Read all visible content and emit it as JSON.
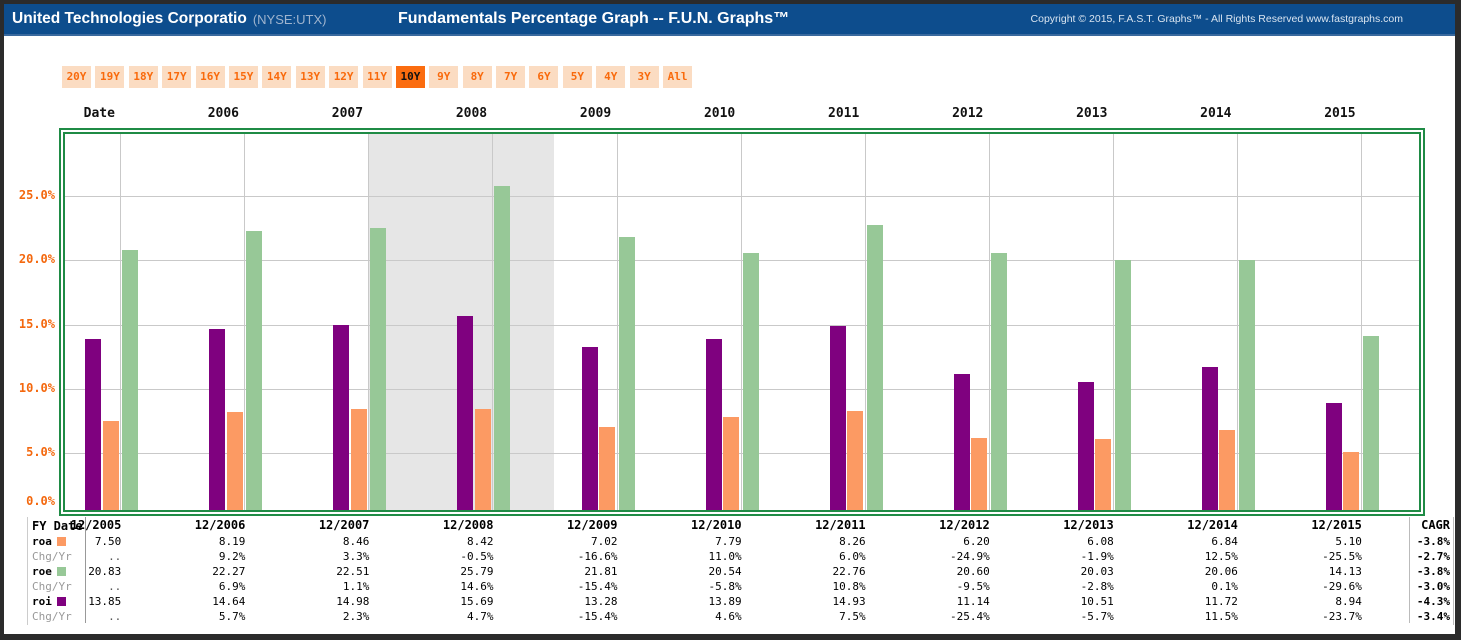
{
  "header": {
    "company": "United Technologies Corporatio",
    "ticker": "(NYSE:UTX)",
    "title": "Fundamentals Percentage Graph -- F.U.N. Graphs™",
    "copyright": "Copyright © 2015, F.A.S.T. Graphs™ - All Rights Reserved www.fastgraphs.com"
  },
  "toolbar": {
    "range_buttons": [
      "20Y",
      "19Y",
      "18Y",
      "17Y",
      "16Y",
      "15Y",
      "14Y",
      "13Y",
      "12Y",
      "11Y",
      "10Y",
      "9Y",
      "8Y",
      "7Y",
      "6Y",
      "5Y",
      "4Y",
      "3Y",
      "All"
    ],
    "selected": "10Y"
  },
  "top_axis": [
    "Date",
    "2006",
    "2007",
    "2008",
    "2009",
    "2010",
    "2011",
    "2012",
    "2013",
    "2014",
    "2015"
  ],
  "chart_data": {
    "type": "bar",
    "title": "Fundamentals Percentage Graph -- F.U.N. Graphs™",
    "x_labels": [
      "12/2005",
      "12/2006",
      "12/2007",
      "12/2008",
      "12/2009",
      "12/2010",
      "12/2011",
      "12/2012",
      "12/2013",
      "12/2014",
      "12/2015"
    ],
    "series": [
      {
        "name": "roi",
        "color": "#7F017F",
        "values": [
          13.85,
          14.64,
          14.98,
          15.69,
          13.28,
          13.89,
          14.93,
          11.14,
          10.51,
          11.72,
          8.94
        ]
      },
      {
        "name": "roa",
        "color": "#FC9A63",
        "values": [
          7.5,
          8.19,
          8.46,
          8.42,
          7.02,
          7.79,
          8.26,
          6.2,
          6.08,
          6.84,
          5.1
        ]
      },
      {
        "name": "roe",
        "color": "#97C897",
        "values": [
          20.83,
          22.27,
          22.51,
          25.79,
          21.81,
          20.54,
          22.76,
          20.6,
          20.03,
          20.06,
          14.13
        ]
      }
    ],
    "y_ticks": [
      {
        "label": "0.0%",
        "value": 0
      },
      {
        "label": "5.0%",
        "value": 5
      },
      {
        "label": "10.0%",
        "value": 10
      },
      {
        "label": "15.0%",
        "value": 15
      },
      {
        "label": "20.0%",
        "value": 20
      },
      {
        "label": "25.0%",
        "value": 25
      }
    ],
    "ylim": [
      0,
      29.3
    ],
    "grid": true,
    "legend_position": "table-row-labels",
    "recession_band": {
      "from_index": 2,
      "to_index": 3.5,
      "color": "#E6E6E6"
    }
  },
  "table": {
    "corner_label": "FY Date",
    "cagr_label": "CAGR",
    "years": [
      "12/2005",
      "12/2006",
      "12/2007",
      "12/2008",
      "12/2009",
      "12/2010",
      "12/2011",
      "12/2012",
      "12/2013",
      "12/2014",
      "12/2015"
    ],
    "rows": [
      {
        "label": "roa",
        "series": "roa",
        "values": [
          "7.50",
          "8.19",
          "8.46",
          "8.42",
          "7.02",
          "7.79",
          "8.26",
          "6.20",
          "6.08",
          "6.84",
          "5.10"
        ],
        "cagr": "-3.8%"
      },
      {
        "label": "Chg/Yr",
        "values": [
          "..",
          "9.2%",
          "3.3%",
          "-0.5%",
          "-16.6%",
          "11.0%",
          "6.0%",
          "-24.9%",
          "-1.9%",
          "12.5%",
          "-25.5%"
        ],
        "cagr": "-2.7%"
      },
      {
        "label": "roe",
        "series": "roe",
        "values": [
          "20.83",
          "22.27",
          "22.51",
          "25.79",
          "21.81",
          "20.54",
          "22.76",
          "20.60",
          "20.03",
          "20.06",
          "14.13"
        ],
        "cagr": "-3.8%"
      },
      {
        "label": "Chg/Yr",
        "values": [
          "..",
          "6.9%",
          "1.1%",
          "14.6%",
          "-15.4%",
          "-5.8%",
          "10.8%",
          "-9.5%",
          "-2.8%",
          "0.1%",
          "-29.6%"
        ],
        "cagr": "-3.0%"
      },
      {
        "label": "roi",
        "series": "roi",
        "values": [
          "13.85",
          "14.64",
          "14.98",
          "15.69",
          "13.28",
          "13.89",
          "14.93",
          "11.14",
          "10.51",
          "11.72",
          "8.94"
        ],
        "cagr": "-4.3%"
      },
      {
        "label": "Chg/Yr",
        "values": [
          "..",
          "5.7%",
          "2.3%",
          "4.7%",
          "-15.4%",
          "4.6%",
          "7.5%",
          "-25.4%",
          "-5.7%",
          "11.5%",
          "-23.7%"
        ],
        "cagr": "-3.4%"
      }
    ]
  },
  "colors": {
    "header_bg": "#0D4D8D",
    "accent_orange": "#F96A0C",
    "button_bg": "#FBDCC2",
    "button_selected_bg": "#FB6C0F",
    "chart_border_green": "#1F8B45",
    "gridline": "#C9C9C9",
    "recession_band": "#E6E6E6",
    "axis_label_orange": "#F4680E"
  }
}
